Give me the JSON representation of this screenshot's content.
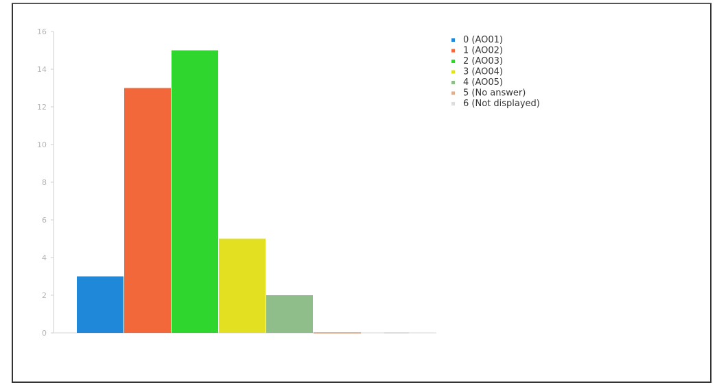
{
  "chart_data": {
    "type": "bar",
    "categories": [
      "0 (AO01)",
      "1 (AO02)",
      "2 (AO03)",
      "3 (AO04)",
      "4 (AO05)",
      "5 (No answer)",
      "6 (Not displayed)"
    ],
    "values": [
      3,
      13,
      15,
      5,
      2,
      0,
      0
    ],
    "colors": [
      "#1f88d8",
      "#f3683a",
      "#2ed62e",
      "#e2e020",
      "#8fbe8a",
      "#e0b090",
      "#dddddd"
    ],
    "ylim": [
      0,
      16
    ],
    "yticks": [
      "0",
      "2",
      "4",
      "6",
      "8",
      "10",
      "12",
      "14",
      "16"
    ],
    "legend_position": "top-right",
    "title": "",
    "xlabel": "",
    "ylabel": ""
  }
}
